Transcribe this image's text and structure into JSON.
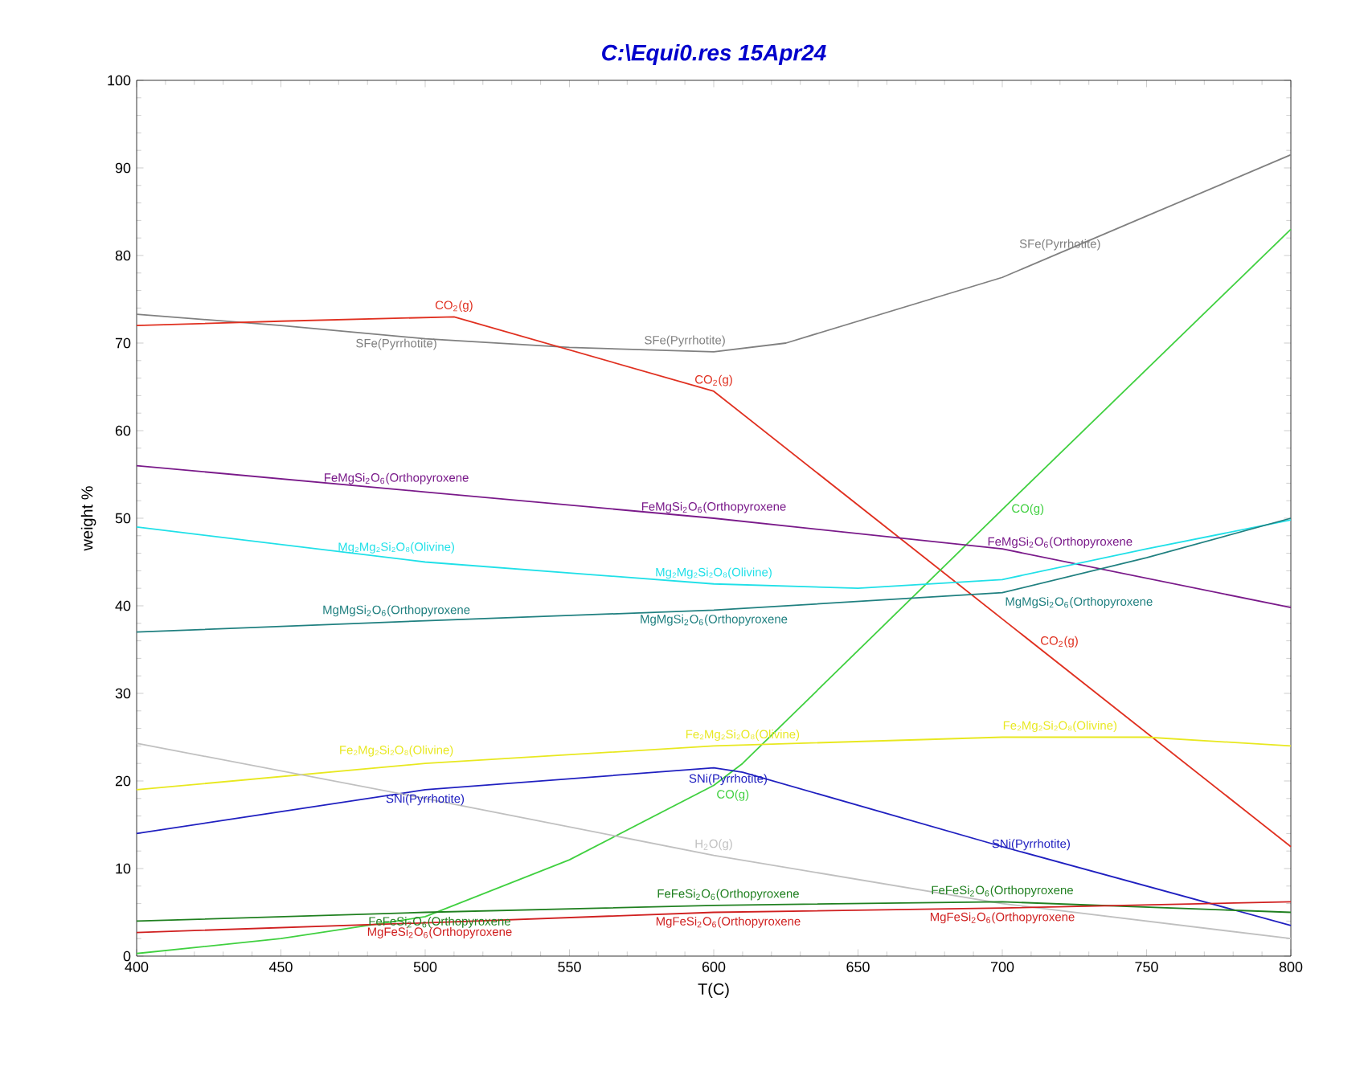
{
  "chart_data": {
    "type": "line",
    "title": "C:\\Equi0.res  15Apr24",
    "xlabel": "T(C)",
    "ylabel": "weight %",
    "xlim": [
      400,
      800
    ],
    "ylim": [
      0,
      100
    ],
    "xticks": [
      400,
      450,
      500,
      550,
      600,
      650,
      700,
      750,
      800
    ],
    "yticks": [
      0,
      10,
      20,
      30,
      40,
      50,
      60,
      70,
      80,
      90,
      100
    ],
    "grid": false,
    "marker": "none",
    "line_style": "solid",
    "series": [
      {
        "color": "#808080",
        "x": [
          400,
          450,
          500,
          550,
          600,
          625,
          650,
          700,
          750,
          800
        ],
        "values": [
          73.3,
          72,
          70.5,
          69.5,
          69,
          70,
          72.5,
          77.5,
          84.5,
          91.5
        ]
      },
      {
        "color": "#e03020",
        "x": [
          400,
          450,
          510,
          600,
          700,
          800
        ],
        "values": [
          72,
          72.5,
          73,
          64.5,
          38.5,
          12.5
        ]
      },
      {
        "color": "#40d040",
        "x": [
          400,
          450,
          500,
          550,
          600,
          610,
          700,
          800
        ],
        "values": [
          0.3,
          2,
          4.5,
          11,
          19.5,
          22,
          51,
          83
        ]
      },
      {
        "color": "#7a1a8a",
        "x": [
          400,
          500,
          600,
          700,
          800
        ],
        "values": [
          56,
          53,
          50,
          46.5,
          39.8
        ]
      },
      {
        "color": "#20e0e8",
        "x": [
          400,
          500,
          600,
          650,
          700,
          750,
          800
        ],
        "values": [
          49,
          45,
          42.5,
          42,
          43,
          46.5,
          49.8
        ]
      },
      {
        "color": "#208080",
        "x": [
          400,
          500,
          600,
          700,
          750,
          800
        ],
        "values": [
          37,
          38.3,
          39.5,
          41.5,
          45.5,
          50
        ]
      },
      {
        "color": "#e8e820",
        "x": [
          400,
          500,
          600,
          700,
          750,
          800
        ],
        "values": [
          19,
          22,
          24,
          25,
          25,
          24
        ]
      },
      {
        "color": "#2020c0",
        "x": [
          400,
          500,
          600,
          610,
          700,
          800
        ],
        "values": [
          14,
          19,
          21.5,
          21,
          12.5,
          3.5
        ]
      },
      {
        "color": "#c0c0c0",
        "x": [
          400,
          500,
          600,
          700,
          800
        ],
        "values": [
          24.3,
          18,
          11.5,
          6,
          2
        ]
      },
      {
        "color": "#208020",
        "x": [
          400,
          500,
          600,
          700,
          800
        ],
        "values": [
          4,
          5,
          5.8,
          6.2,
          5
        ]
      },
      {
        "color": "#d02020",
        "x": [
          400,
          500,
          600,
          700,
          800
        ],
        "values": [
          2.7,
          3.8,
          5,
          5.5,
          6.2
        ]
      }
    ],
    "annotations": [
      {
        "text": "CO$_{2}$(g)",
        "x": 510,
        "y": 73
      },
      {
        "text": "CO$_{2}$(g)",
        "x": 600,
        "y": 64.5
      },
      {
        "text": "CO$_{2}$(g)",
        "x": 710,
        "y": 35.9
      },
      {
        "text": "SFe(Pyrrhotite)",
        "x": 490,
        "y": 71
      },
      {
        "text": "SFe(Pyrrhotite)",
        "x": 590,
        "y": 69
      },
      {
        "text": "SFe(Pyrrhotite)",
        "x": 720,
        "y": 80
      },
      {
        "text": "FeMgSi$_{2}$O$_{6}$(Orthopyroxene",
        "x": 490,
        "y": 53.3
      },
      {
        "text": "FeMgSi$_{2}$O$_{6}$(Orthopyroxene",
        "x": 600,
        "y": 50
      },
      {
        "text": "FeMgSi$_{2}$O$_{6}$(Orthopyroxene",
        "x": 720,
        "y": 46
      },
      {
        "text": "Mg₂Mg₂Si₂O₈(Olivine)",
        "x": 490,
        "y": 45.4
      },
      {
        "text": "Mg₂Mg₂Si₂O₈(Olivine)",
        "x": 600,
        "y": 42.5
      },
      {
        "text": "MgMgSi$_{2}$O$_{6}$(Orthopyroxene",
        "x": 490,
        "y": 38.2
      },
      {
        "text": "MgMgSi$_{2}$O$_{6}$(Orthopyroxene",
        "x": 600,
        "y": 39.5
      },
      {
        "text": "MgMgSi$_{2}$O$_{6}$(Orthopyroxene",
        "x": 700,
        "y": 41.5
      },
      {
        "text": "CO(g)",
        "x": 700,
        "y": 51
      },
      {
        "text": "CO(g)",
        "x": 600,
        "y": 19.5
      },
      {
        "text": "Fe₂Mg₂Si₂O₈(Olivine)",
        "x": 490,
        "y": 22.2
      },
      {
        "text": "Fe₂Mg₂Si₂O₈(Olivine)",
        "x": 610,
        "y": 24
      },
      {
        "text": "Fe₂Mg₂Si₂O₈(Olivine)",
        "x": 720,
        "y": 25
      },
      {
        "text": "SNi(Pyrrhotite)",
        "x": 500,
        "y": 19
      },
      {
        "text": "SNi(Pyrrhotite)",
        "x": 605,
        "y": 21.3
      },
      {
        "text": "SNi(Pyrrhotite)",
        "x": 710,
        "y": 11.5
      },
      {
        "text": "H$_{2}$O(g)",
        "x": 600,
        "y": 11.5
      },
      {
        "text": "FeFeSi$_{2}$O$_{6}$(Orthopyroxene",
        "x": 505,
        "y": 5
      },
      {
        "text": "FeFeSi$_{2}$O$_{6}$(Orthopyroxene",
        "x": 605,
        "y": 5.8
      },
      {
        "text": "FeFeSi$_{2}$O$_{6}$(Orthopyroxene",
        "x": 700,
        "y": 6.2
      },
      {
        "text": "MgFeSi$_{2}$O$_{6}$(Orthopyroxene",
        "x": 505,
        "y": 3.8
      },
      {
        "text": "MgFeSi$_{2}$O$_{6}$(Orthopyroxene",
        "x": 605,
        "y": 5
      },
      {
        "text": "MgFeSi$_{2}$O$_{6}$(Orthopyroxene",
        "x": 700,
        "y": 5.5
      }
    ]
  }
}
